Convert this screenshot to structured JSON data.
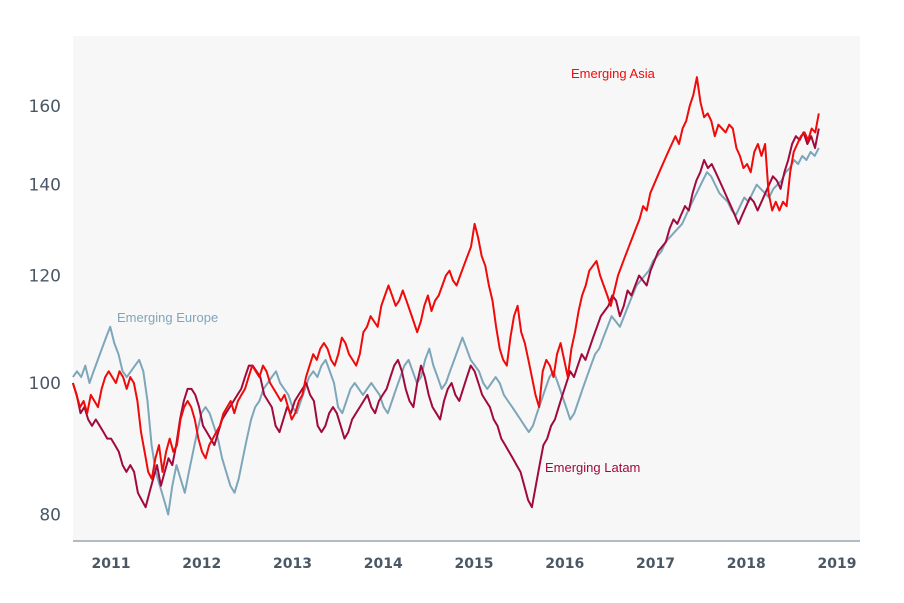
{
  "chart_data": {
    "type": "line",
    "title": "",
    "xlabel": "",
    "ylabel": "",
    "y_scale": "log",
    "ylim": [
      76,
      172
    ],
    "xlim": [
      2010.58,
      2019.25
    ],
    "grid": false,
    "legend": "inline labels",
    "y_ticks": [
      80,
      100,
      120,
      140,
      160
    ],
    "y_tick_labels": [
      "80",
      "100",
      "120",
      "140",
      "160"
    ],
    "x_ticks": [
      2011,
      2012,
      2013,
      2014,
      2015,
      2016,
      2017,
      2018,
      2019
    ],
    "x_tick_labels": [
      "2011",
      "2012",
      "2013",
      "2014",
      "2015",
      "2016",
      "2017",
      "2018",
      "2019"
    ],
    "x_start": 2010.58,
    "x_step": 0.0417,
    "series": [
      {
        "name": "Emerging Asia",
        "label": "Emerging Asia",
        "color": "#f00a0a",
        "values": [
          100,
          98,
          96,
          97,
          95,
          98,
          97,
          96,
          99,
          101,
          102,
          101,
          100,
          102,
          101,
          99,
          101,
          100,
          97,
          92,
          89,
          86,
          85,
          88,
          90,
          86,
          89,
          91,
          89,
          90,
          94,
          96,
          97,
          96,
          94,
          91,
          89,
          88,
          90,
          91,
          92,
          93,
          95,
          96,
          97,
          95,
          97,
          98,
          99,
          101,
          103,
          102,
          101,
          103,
          102,
          100,
          99,
          98,
          97,
          98,
          96,
          94,
          95,
          97,
          98,
          101,
          103,
          105,
          104,
          106,
          107,
          106,
          104,
          103,
          105,
          108,
          107,
          105,
          104,
          103,
          105,
          109,
          110,
          112,
          111,
          110,
          114,
          116,
          118,
          116,
          114,
          115,
          117,
          115,
          113,
          111,
          109,
          111,
          114,
          116,
          113,
          115,
          116,
          118,
          120,
          121,
          119,
          118,
          120,
          122,
          124,
          126,
          131,
          128,
          124,
          122,
          118,
          115,
          110,
          106,
          104,
          103,
          108,
          112,
          114,
          109,
          107,
          104,
          101,
          98,
          96,
          102,
          104,
          103,
          101,
          105,
          107,
          104,
          101,
          106,
          109,
          113,
          116,
          118,
          121,
          122,
          123,
          120,
          118,
          116,
          114,
          117,
          120,
          122,
          124,
          126,
          128,
          130,
          132,
          135,
          134,
          138,
          140,
          142,
          144,
          146,
          148,
          150,
          152,
          150,
          154,
          156,
          160,
          163,
          168,
          161,
          157,
          158,
          156,
          152,
          155,
          154,
          153,
          155,
          154,
          149,
          147,
          144,
          145,
          143,
          148,
          150,
          147,
          150,
          138,
          134,
          136,
          134,
          136,
          135,
          143,
          148,
          150,
          152,
          153,
          151,
          154,
          153,
          158
        ]
      },
      {
        "name": "Emerging Latam",
        "label": "Emerging Latam",
        "color": "#a00a3c",
        "values": [
          100,
          98,
          95,
          96,
          94,
          93,
          94,
          93,
          92,
          91,
          91,
          90,
          89,
          87,
          86,
          87,
          86,
          83,
          82,
          81,
          83,
          85,
          87,
          84,
          86,
          88,
          87,
          90,
          94,
          97,
          99,
          99,
          98,
          96,
          93,
          92,
          91,
          90,
          92,
          94,
          95,
          96,
          97,
          98,
          99,
          101,
          103,
          103,
          102,
          101,
          98,
          97,
          96,
          93,
          92,
          94,
          96,
          95,
          97,
          98,
          99,
          100,
          98,
          97,
          93,
          92,
          93,
          95,
          96,
          95,
          93,
          91,
          92,
          94,
          95,
          96,
          97,
          98,
          96,
          95,
          97,
          98,
          99,
          101,
          103,
          104,
          102,
          99,
          97,
          96,
          100,
          103,
          101,
          98,
          96,
          95,
          94,
          97,
          99,
          100,
          98,
          97,
          99,
          101,
          103,
          102,
          100,
          98,
          97,
          96,
          94,
          93,
          91,
          90,
          89,
          88,
          87,
          86,
          84,
          82,
          81,
          84,
          87,
          90,
          91,
          93,
          94,
          96,
          98,
          100,
          102,
          101,
          103,
          105,
          104,
          106,
          108,
          110,
          112,
          113,
          114,
          116,
          115,
          112,
          114,
          117,
          116,
          118,
          120,
          119,
          118,
          121,
          123,
          125,
          126,
          127,
          130,
          132,
          131,
          133,
          135,
          134,
          138,
          141,
          143,
          146,
          144,
          145,
          143,
          141,
          139,
          137,
          135,
          133,
          131,
          133,
          135,
          137,
          136,
          134,
          136,
          138,
          140,
          142,
          141,
          139,
          143,
          146,
          150,
          152,
          151,
          153,
          150,
          152,
          149,
          154
        ]
      },
      {
        "name": "Emerging Europe",
        "label": "Emerging Europe",
        "color": "#7ea6bb",
        "values": [
          101,
          102,
          101,
          103,
          100,
          102,
          104,
          106,
          108,
          110,
          107,
          105,
          102,
          101,
          102,
          103,
          104,
          102,
          97,
          90,
          86,
          84,
          82,
          80,
          84,
          87,
          85,
          83,
          86,
          89,
          92,
          95,
          96,
          95,
          93,
          91,
          88,
          86,
          84,
          83,
          85,
          88,
          91,
          94,
          96,
          97,
          99,
          100,
          101,
          102,
          100,
          99,
          98,
          96,
          95,
          97,
          99,
          101,
          102,
          101,
          103,
          104,
          102,
          100,
          96,
          95,
          97,
          99,
          100,
          99,
          98,
          99,
          100,
          99,
          98,
          96,
          95,
          97,
          99,
          101,
          103,
          104,
          102,
          100,
          101,
          104,
          106,
          103,
          101,
          99,
          100,
          102,
          104,
          106,
          108,
          106,
          104,
          103,
          102,
          100,
          99,
          100,
          101,
          100,
          98,
          97,
          96,
          95,
          94,
          93,
          92,
          93,
          95,
          97,
          99,
          101,
          102,
          100,
          98,
          96,
          94,
          95,
          97,
          99,
          101,
          103,
          105,
          106,
          108,
          110,
          112,
          111,
          110,
          112,
          114,
          116,
          118,
          119,
          120,
          121,
          123,
          124,
          125,
          127,
          128,
          129,
          130,
          131,
          133,
          135,
          137,
          139,
          141,
          143,
          142,
          140,
          138,
          137,
          136,
          134,
          133,
          135,
          137,
          136,
          138,
          140,
          139,
          138,
          137,
          139,
          140,
          141,
          143,
          144,
          146,
          145,
          147,
          146,
          148,
          147,
          149
        ]
      }
    ]
  }
}
